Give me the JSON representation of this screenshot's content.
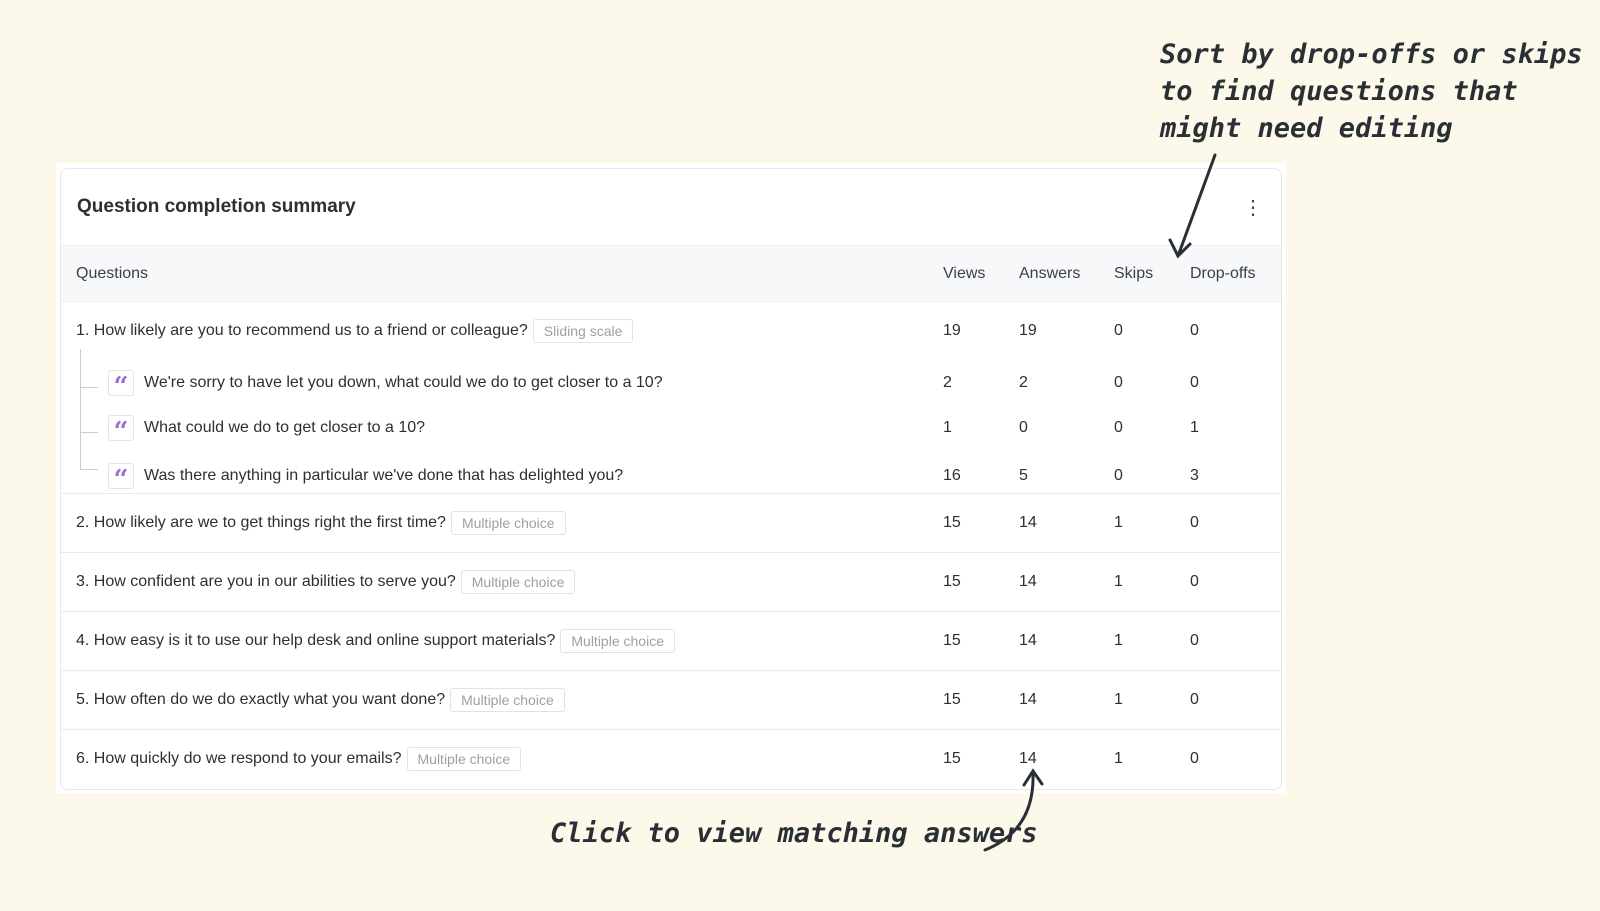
{
  "annotations": {
    "sort_hint": [
      "Sort by drop-offs or skips",
      "to find questions that",
      "might need editing"
    ],
    "click_hint": "Click to view matching answers"
  },
  "card": {
    "title": "Question completion summary",
    "menu_icon": "kebab-vertical-icon",
    "columns": {
      "questions": "Questions",
      "views": "Views",
      "answers": "Answers",
      "skips": "Skips",
      "dropoffs": "Drop-offs"
    },
    "q1": {
      "text": "1. How likely are you to recommend us to a friend or colleague?",
      "tag": "Sliding scale",
      "views": "19",
      "answers": "19",
      "skips": "0",
      "dropoffs": "0",
      "followups": [
        {
          "text": "We're sorry to have let you down, what could we do to get closer to a 10?",
          "views": "2",
          "answers": "2",
          "skips": "0",
          "dropoffs": "0"
        },
        {
          "text": "What could we do to get closer to a 10?",
          "views": "1",
          "answers": "0",
          "skips": "0",
          "dropoffs": "1"
        },
        {
          "text": "Was there anything in particular we've done that has delighted you?",
          "views": "16",
          "answers": "5",
          "skips": "0",
          "dropoffs": "3"
        }
      ]
    },
    "rows": [
      {
        "text": "2. How likely are we to get things right the first time?",
        "tag": "Multiple choice",
        "views": "15",
        "answers": "14",
        "skips": "1",
        "dropoffs": "0"
      },
      {
        "text": "3. How confident are you in our abilities to serve you?",
        "tag": "Multiple choice",
        "views": "15",
        "answers": "14",
        "skips": "1",
        "dropoffs": "0"
      },
      {
        "text": "4. How easy is it to use our help desk and online support materials?",
        "tag": "Multiple choice",
        "views": "15",
        "answers": "14",
        "skips": "1",
        "dropoffs": "0"
      },
      {
        "text": "5. How often do we do exactly what you want done?",
        "tag": "Multiple choice",
        "views": "15",
        "answers": "14",
        "skips": "1",
        "dropoffs": "0"
      },
      {
        "text": "6. How quickly do we respond to your emails?",
        "tag": "Multiple choice",
        "views": "15",
        "answers": "14",
        "skips": "1",
        "dropoffs": "0"
      }
    ],
    "colors": {
      "background": "#fdf9ea",
      "quote_icon": "#9b6fd6",
      "header_bg": "#f7f8fa"
    }
  }
}
